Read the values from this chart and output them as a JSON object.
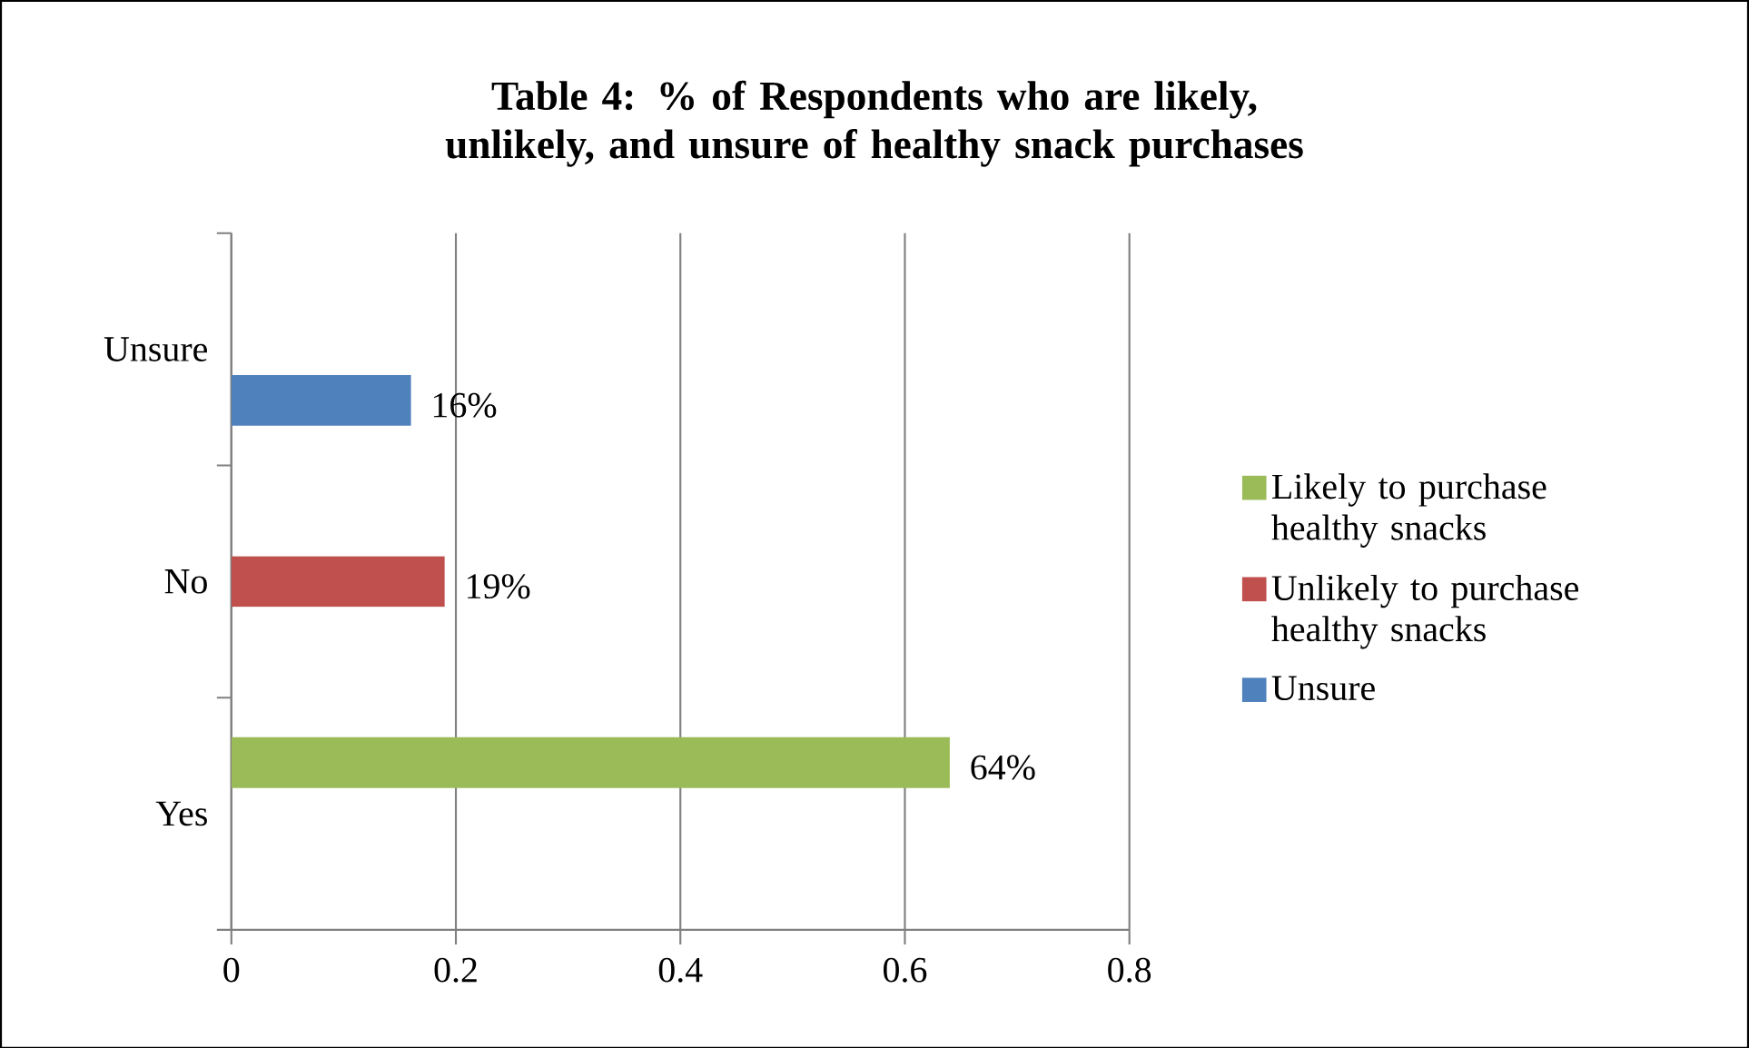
{
  "chart_data": {
    "type": "bar",
    "orientation": "horizontal",
    "title": "Table 4: % of Respondents who are likely, unlikely, and unsure of healthy snack purchases",
    "categories": [
      "Unsure",
      "No",
      "Yes"
    ],
    "series": [
      {
        "name": "Likely to purchase healthy snacks",
        "color": "#9bbb59",
        "values": [
          null,
          null,
          0.64
        ],
        "value_labels": [
          null,
          null,
          "64%"
        ]
      },
      {
        "name": "Unlikely to purchase healthy snacks",
        "color": "#c0504d",
        "values": [
          null,
          0.19,
          null
        ],
        "value_labels": [
          null,
          "19%",
          null
        ]
      },
      {
        "name": "Unsure",
        "color": "#4f81bd",
        "values": [
          0.16,
          null,
          null
        ],
        "value_labels": [
          "16%",
          null,
          null
        ]
      }
    ],
    "xlim": [
      0,
      0.8
    ],
    "xticks": [
      0,
      0.2,
      0.4,
      0.6,
      0.8
    ],
    "grid": "x",
    "legend": "right"
  }
}
